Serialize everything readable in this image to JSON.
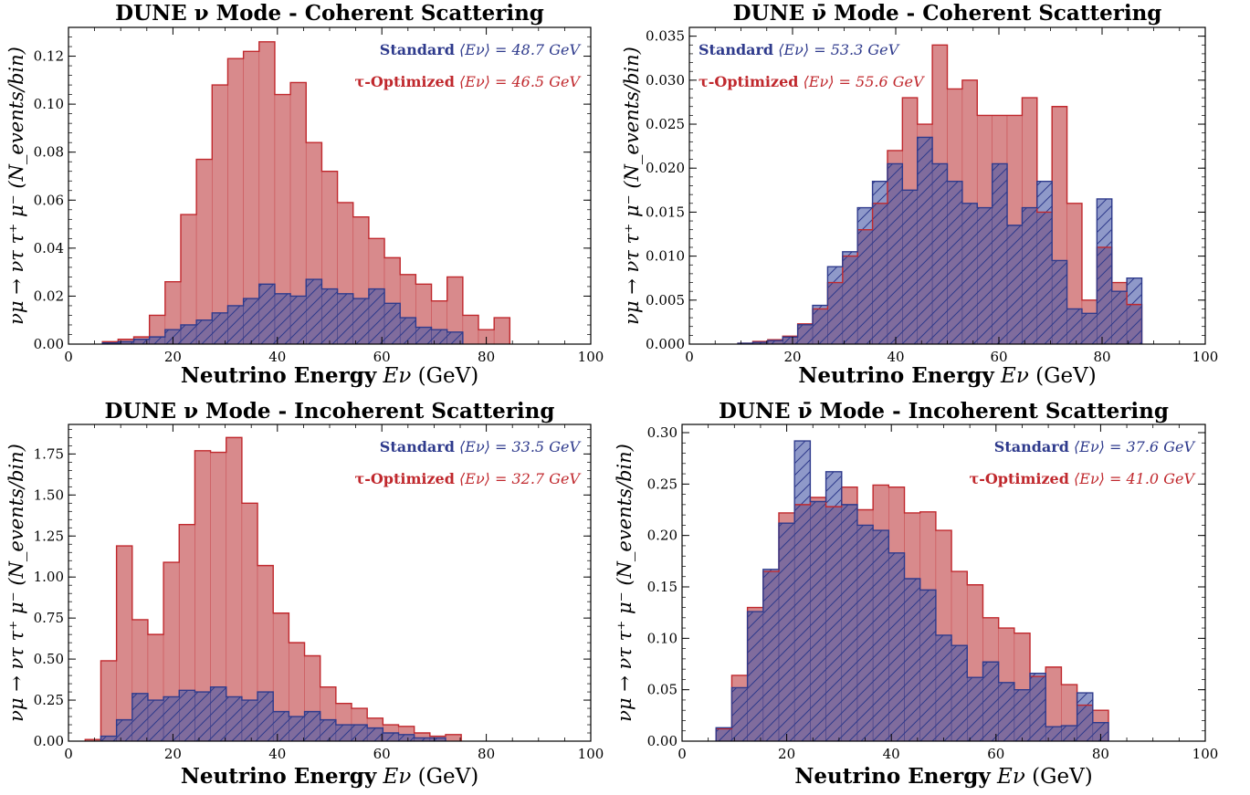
{
  "colors": {
    "standard": "#2e3a8c",
    "standard_fill": "#4a5aa8",
    "optimized": "#c0282d",
    "optimized_fill": "#d88a8c"
  },
  "chart_data": [
    {
      "type": "bar",
      "title": "DUNE ν Mode - Coherent Scattering",
      "xlabel_bold": "Neutrino Energy",
      "xlabel_var": "Eν",
      "xlabel_unit": "(GeV)",
      "ylabel": "νμ → ντ τ⁺ μ⁻ (N_events/bin)",
      "xlim": [
        0,
        100
      ],
      "ylim": [
        0,
        0.132
      ],
      "xticks": [
        0,
        20,
        40,
        60,
        80,
        100
      ],
      "xtick_labels": [
        "0",
        "20",
        "40",
        "60",
        "80",
        "100"
      ],
      "yticks": [
        0,
        0.02,
        0.04,
        0.06,
        0.08,
        0.1,
        0.12
      ],
      "ytick_labels": [
        "0.00",
        "0.02",
        "0.04",
        "0.06",
        "0.08",
        "0.10",
        "0.12"
      ],
      "bin_start": 3.5,
      "bin_width": 3.0,
      "legend_position": "top-right",
      "series": [
        {
          "name": "τ-Optimized",
          "label_bold": "τ-Optimized",
          "label_stat": "⟨Eν⟩ = 46.5 GeV",
          "values": [
            0.0,
            0.001,
            0.002,
            0.003,
            0.012,
            0.026,
            0.054,
            0.077,
            0.108,
            0.119,
            0.122,
            0.126,
            0.104,
            0.109,
            0.084,
            0.072,
            0.059,
            0.053,
            0.044,
            0.036,
            0.029,
            0.025,
            0.018,
            0.028,
            0.012,
            0.006,
            0.011
          ]
        },
        {
          "name": "Standard",
          "label_bold": "Standard",
          "label_stat": "⟨Eν⟩ = 48.7 GeV",
          "values": [
            0.0,
            0.0005,
            0.001,
            0.002,
            0.003,
            0.006,
            0.008,
            0.01,
            0.013,
            0.016,
            0.019,
            0.025,
            0.021,
            0.02,
            0.027,
            0.023,
            0.021,
            0.019,
            0.023,
            0.017,
            0.011,
            0.007,
            0.006,
            0.005,
            0.0,
            0.0,
            0.0
          ]
        }
      ]
    },
    {
      "type": "bar",
      "title": "DUNE ν̄ Mode - Coherent Scattering",
      "xlabel_bold": "Neutrino Energy",
      "xlabel_var": "Eν",
      "xlabel_unit": "(GeV)",
      "ylabel": "νμ → ντ τ⁺ μ⁻ (N_events/bin)",
      "xlim": [
        0,
        100
      ],
      "ylim": [
        0,
        0.036
      ],
      "xticks": [
        0,
        20,
        40,
        60,
        80,
        100
      ],
      "xtick_labels": [
        "0",
        "20",
        "40",
        "60",
        "80",
        "100"
      ],
      "yticks": [
        0,
        0.005,
        0.01,
        0.015,
        0.02,
        0.025,
        0.03,
        0.035
      ],
      "ytick_labels": [
        "0.000",
        "0.005",
        "0.010",
        "0.015",
        "0.020",
        "0.025",
        "0.030",
        "0.035"
      ],
      "bin_start": 6.5,
      "bin_width": 2.9,
      "legend_position": "top-left",
      "series": [
        {
          "name": "τ-Optimized",
          "label_bold": "τ-Optimized",
          "label_stat": "⟨Eν⟩ = 55.6 GeV",
          "values": [
            0.0,
            0.0001,
            0.0003,
            0.0005,
            0.0009,
            0.0023,
            0.004,
            0.007,
            0.01,
            0.013,
            0.016,
            0.022,
            0.028,
            0.025,
            0.034,
            0.029,
            0.03,
            0.026,
            0.026,
            0.026,
            0.028,
            0.015,
            0.027,
            0.016,
            0.005,
            0.011,
            0.007,
            0.0045
          ]
        },
        {
          "name": "Standard",
          "label_bold": "Standard",
          "label_stat": "⟨Eν⟩ = 53.3 GeV",
          "values": [
            0.0,
            0.0001,
            0.0002,
            0.0004,
            0.0008,
            0.0022,
            0.0044,
            0.0088,
            0.0105,
            0.0155,
            0.0185,
            0.0205,
            0.0175,
            0.0235,
            0.0205,
            0.0185,
            0.016,
            0.0155,
            0.0205,
            0.0135,
            0.0155,
            0.0185,
            0.0095,
            0.004,
            0.0035,
            0.0165,
            0.006,
            0.0075
          ]
        }
      ]
    },
    {
      "type": "bar",
      "title": "DUNE ν Mode - Incoherent Scattering",
      "xlabel_bold": "Neutrino Energy",
      "xlabel_var": "Eν",
      "xlabel_unit": "(GeV)",
      "ylabel": "νμ → ντ τ⁺ μ⁻ (N_events/bin)",
      "xlim": [
        0,
        100
      ],
      "ylim": [
        0,
        1.93
      ],
      "xticks": [
        0,
        20,
        40,
        60,
        80,
        100
      ],
      "xtick_labels": [
        "0",
        "20",
        "40",
        "60",
        "80",
        "100"
      ],
      "yticks": [
        0,
        0.25,
        0.5,
        0.75,
        1.0,
        1.25,
        1.5,
        1.75
      ],
      "ytick_labels": [
        "0.00",
        "0.25",
        "0.50",
        "0.75",
        "1.00",
        "1.25",
        "1.50",
        "1.75"
      ],
      "bin_start": 3.2,
      "bin_width": 3.0,
      "legend_position": "top-right",
      "series": [
        {
          "name": "τ-Optimized",
          "label_bold": "τ-Optimized",
          "label_stat": "⟨Eν⟩ = 32.7 GeV",
          "values": [
            0.01,
            0.49,
            1.19,
            0.74,
            0.65,
            1.09,
            1.32,
            1.77,
            1.76,
            1.85,
            1.45,
            1.07,
            0.78,
            0.6,
            0.52,
            0.33,
            0.23,
            0.2,
            0.14,
            0.1,
            0.09,
            0.05,
            0.03,
            0.04
          ]
        },
        {
          "name": "Standard",
          "label_bold": "Standard",
          "label_stat": "⟨Eν⟩ = 33.5 GeV",
          "values": [
            0.0,
            0.03,
            0.13,
            0.29,
            0.25,
            0.27,
            0.31,
            0.3,
            0.33,
            0.27,
            0.25,
            0.3,
            0.18,
            0.15,
            0.18,
            0.13,
            0.1,
            0.1,
            0.08,
            0.05,
            0.04,
            0.02,
            0.02,
            0.0
          ]
        }
      ]
    },
    {
      "type": "bar",
      "title": "DUNE ν̄ Mode - Incoherent Scattering",
      "xlabel_bold": "Neutrino Energy",
      "xlabel_var": "Eν",
      "xlabel_unit": "(GeV)",
      "ylabel": "νμ → ντ τ⁺ μ⁻ (N_events/bin)",
      "xlim": [
        0,
        100
      ],
      "ylim": [
        0,
        0.308
      ],
      "xticks": [
        0,
        20,
        40,
        60,
        80,
        100
      ],
      "xtick_labels": [
        "0",
        "20",
        "40",
        "60",
        "80",
        "100"
      ],
      "yticks": [
        0,
        0.05,
        0.1,
        0.15,
        0.2,
        0.25,
        0.3
      ],
      "ytick_labels": [
        "0.00",
        "0.05",
        "0.10",
        "0.15",
        "0.20",
        "0.25",
        "0.30"
      ],
      "bin_start": 3.5,
      "bin_width": 3.0,
      "legend_position": "top-right",
      "series": [
        {
          "name": "τ-Optimized",
          "label_bold": "τ-Optimized",
          "label_stat": "⟨Eν⟩ = 41.0 GeV",
          "values": [
            0.0,
            0.012,
            0.064,
            0.13,
            0.165,
            0.222,
            0.23,
            0.237,
            0.228,
            0.247,
            0.225,
            0.249,
            0.247,
            0.222,
            0.223,
            0.205,
            0.165,
            0.152,
            0.12,
            0.11,
            0.105,
            0.063,
            0.072,
            0.055,
            0.035,
            0.03,
            0.0
          ]
        },
        {
          "name": "Standard",
          "label_bold": "Standard",
          "label_stat": "⟨Eν⟩ = 37.6 GeV",
          "values": [
            0.0,
            0.013,
            0.052,
            0.126,
            0.167,
            0.212,
            0.292,
            0.233,
            0.262,
            0.23,
            0.21,
            0.205,
            0.183,
            0.158,
            0.147,
            0.103,
            0.093,
            0.062,
            0.077,
            0.057,
            0.05,
            0.066,
            0.014,
            0.015,
            0.047,
            0.018,
            0.0
          ]
        }
      ]
    }
  ]
}
